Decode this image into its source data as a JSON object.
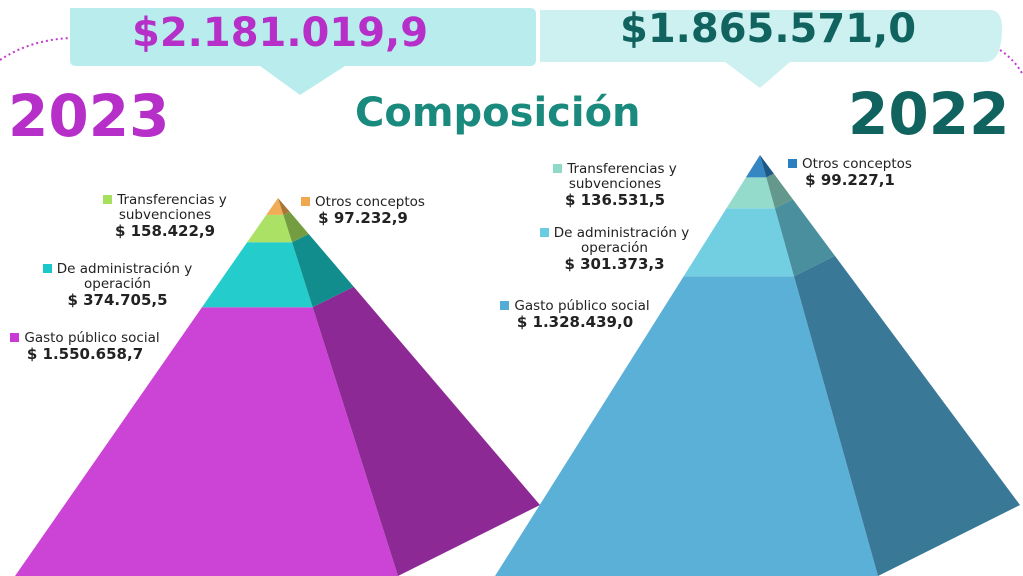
{
  "title": "Composición",
  "chart_data": [
    {
      "type": "pyramid",
      "title": "$2.181.019,9",
      "subtitle": "2023",
      "categories": [
        "Gasto público social",
        "De administración y operación",
        "Transferencias y subvenciones",
        "Otros conceptos"
      ],
      "values": [
        1550658.7,
        374705.5,
        158422.9,
        97232.9
      ],
      "value_labels": [
        "$ 1.550.658,7",
        "$ 374.705,5",
        "$ 158.422,9",
        "$ 97.232,9"
      ],
      "colors": [
        "#c93ad4",
        "#19c9c9",
        "#a6e05e",
        "#f0a84e"
      ]
    },
    {
      "type": "pyramid",
      "title": "$1.865.571,0",
      "subtitle": "2022",
      "categories": [
        "Gasto público social",
        "De administración y operación",
        "Transferencias y subvenciones",
        "Otros conceptos"
      ],
      "values": [
        1328439.0,
        301373.3,
        136531.5,
        99227.1
      ],
      "value_labels": [
        "$ 1.328.439,0",
        "$ 301.373,3",
        "$ 136.531,5",
        "$ 99.227,1"
      ],
      "colors": [
        "#52acd6",
        "#6acce0",
        "#8fd9c8",
        "#2a7fc0"
      ]
    }
  ]
}
